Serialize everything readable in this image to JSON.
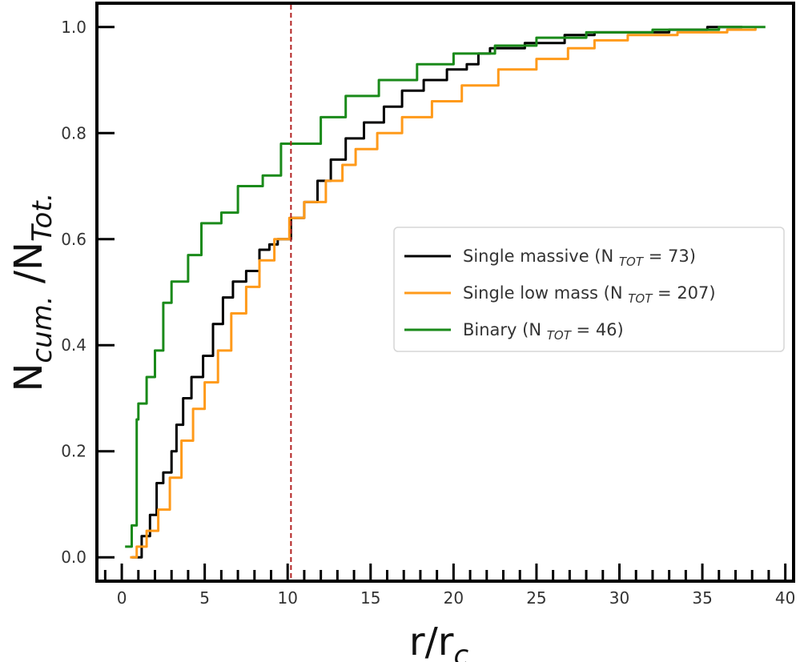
{
  "chart_data": {
    "type": "line",
    "title": "",
    "xlabel": {
      "main": "r/r",
      "sub": "c"
    },
    "ylabel": {
      "p1": "N",
      "s1": "cum.",
      "p2": " /N",
      "s2": "Tot."
    },
    "xlim": [
      -1.5,
      40.5
    ],
    "ylim": [
      -0.045,
      1.045
    ],
    "xticks": [
      0,
      5,
      10,
      15,
      20,
      25,
      30,
      35,
      40
    ],
    "xtick_labels": [
      "0",
      "5",
      "10",
      "15",
      "20",
      "25",
      "30",
      "35",
      "40"
    ],
    "yticks": [
      0.0,
      0.2,
      0.4,
      0.6,
      0.8,
      1.0
    ],
    "ytick_labels": [
      "0.0",
      "0.2",
      "0.4",
      "0.6",
      "0.8",
      "1.0"
    ],
    "grid": false,
    "legend_position": "center-right",
    "vline": {
      "x": 10.2,
      "color": "#b22222",
      "style": "dashed"
    },
    "series": [
      {
        "name": "Single massive (N TOT = 73)",
        "legend": {
          "prefix": "Single massive (N ",
          "sub": "TOT",
          "suffix": " = 73)"
        },
        "color": "#000000",
        "x": [
          0.6,
          1.2,
          1.7,
          2.1,
          2.5,
          3.0,
          3.3,
          3.7,
          4.2,
          4.9,
          5.5,
          6.1,
          6.7,
          7.5,
          8.3,
          8.9,
          9.4,
          10.2,
          11.0,
          11.8,
          12.6,
          13.5,
          14.6,
          15.8,
          16.9,
          18.2,
          19.6,
          20.8,
          21.5,
          22.2,
          24.3,
          26.7,
          28.5,
          30.6,
          33.0,
          35.3,
          37.4
        ],
        "y": [
          0.0,
          0.04,
          0.08,
          0.14,
          0.16,
          0.2,
          0.25,
          0.3,
          0.34,
          0.38,
          0.44,
          0.49,
          0.52,
          0.54,
          0.58,
          0.59,
          0.6,
          0.64,
          0.67,
          0.71,
          0.75,
          0.79,
          0.82,
          0.85,
          0.88,
          0.9,
          0.92,
          0.93,
          0.95,
          0.96,
          0.97,
          0.985,
          0.99,
          0.99,
          0.995,
          1.0,
          1.0
        ]
      },
      {
        "name": "Single low mass (N TOT = 207)",
        "legend": {
          "prefix": "Single low mass (N ",
          "sub": "TOT",
          "suffix": " = 207)"
        },
        "color": "#ff9a1a",
        "x": [
          0.5,
          0.9,
          1.5,
          2.2,
          2.9,
          3.6,
          4.3,
          5.0,
          5.8,
          6.6,
          7.5,
          8.3,
          9.2,
          10.1,
          11.0,
          12.3,
          13.3,
          14.1,
          15.4,
          16.9,
          18.7,
          20.5,
          22.7,
          25.0,
          26.9,
          28.5,
          30.5,
          33.5,
          36.5,
          38.2
        ],
        "y": [
          0.0,
          0.02,
          0.05,
          0.09,
          0.15,
          0.22,
          0.28,
          0.33,
          0.39,
          0.46,
          0.51,
          0.56,
          0.6,
          0.64,
          0.67,
          0.71,
          0.74,
          0.77,
          0.8,
          0.83,
          0.86,
          0.89,
          0.92,
          0.94,
          0.96,
          0.975,
          0.985,
          0.99,
          0.995,
          1.0
        ]
      },
      {
        "name": "Binary (N TOT = 46)",
        "legend": {
          "prefix": "Binary (N ",
          "sub": "TOT",
          "suffix": " = 46)"
        },
        "color": "#1a8a1a",
        "x": [
          0.2,
          0.6,
          0.9,
          1.0,
          1.5,
          2.0,
          2.5,
          3.0,
          4.0,
          4.8,
          6.0,
          7.0,
          8.5,
          9.6,
          12.0,
          13.5,
          15.5,
          17.8,
          20.0,
          22.5,
          25.0,
          28.0,
          32.0,
          36.0,
          38.8
        ],
        "y": [
          0.02,
          0.06,
          0.26,
          0.29,
          0.34,
          0.39,
          0.48,
          0.52,
          0.57,
          0.63,
          0.65,
          0.7,
          0.72,
          0.78,
          0.83,
          0.87,
          0.9,
          0.93,
          0.95,
          0.965,
          0.98,
          0.99,
          0.995,
          1.0,
          1.0
        ]
      }
    ]
  }
}
